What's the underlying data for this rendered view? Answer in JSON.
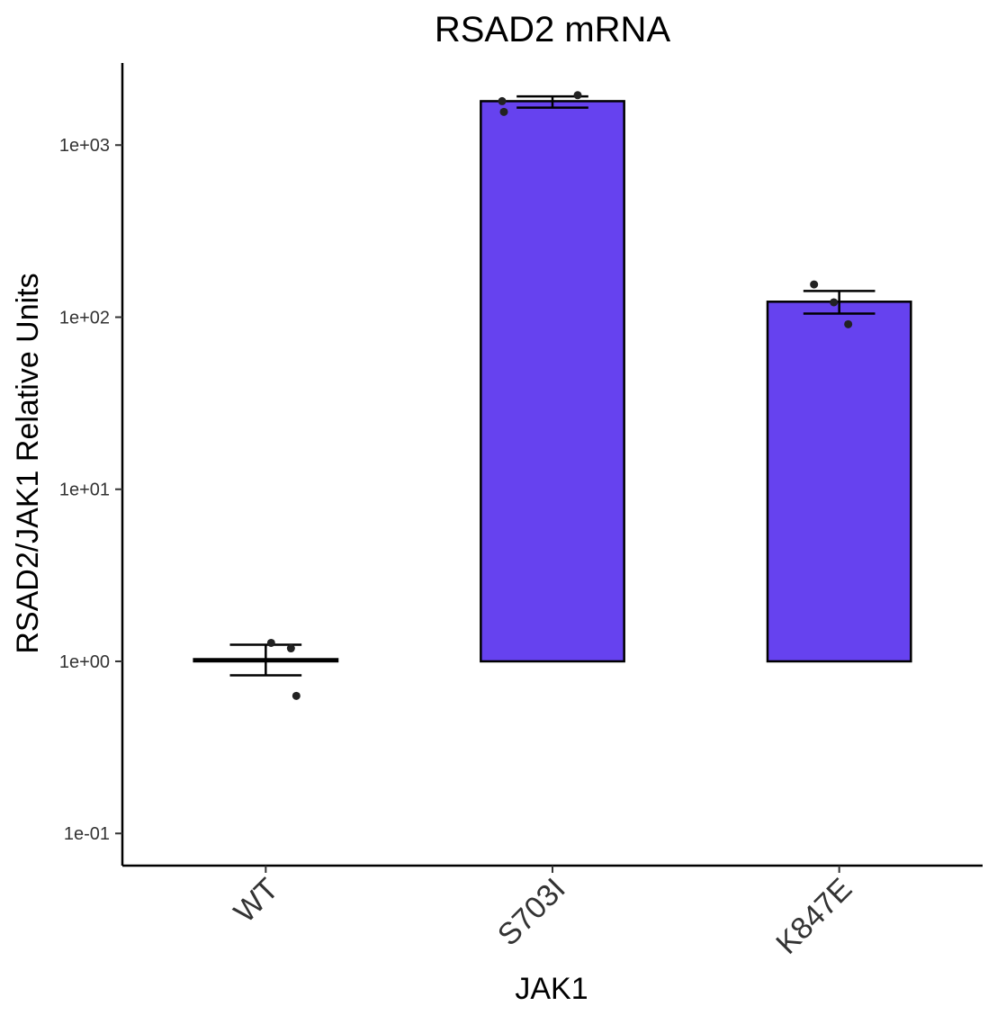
{
  "chart_data": {
    "type": "bar",
    "title": "RSAD2 mRNA",
    "xlabel": "JAK1",
    "ylabel": "RSAD2/JAK1 Relative Units",
    "y_scale": "log10",
    "ylim": [
      0.065,
      3000
    ],
    "bar_baseline": 1,
    "y_ticks": [
      0.1,
      1,
      10,
      100,
      1000
    ],
    "y_tick_labels": [
      "1e-01",
      "1e+00",
      "1e+01",
      "1e+02",
      "1e+03"
    ],
    "categories": [
      "WT",
      "S703I",
      "K847E"
    ],
    "values": [
      1.03,
      1800,
      123
    ],
    "error_low": [
      0.83,
      1650,
      105
    ],
    "error_high": [
      1.25,
      1920,
      142
    ],
    "points": [
      [
        1.28,
        1.19,
        0.63
      ],
      [
        1800,
        1560,
        1950
      ],
      [
        155,
        122,
        91
      ]
    ],
    "bar_color": "#6642ef",
    "grid": false,
    "legend": "none"
  }
}
